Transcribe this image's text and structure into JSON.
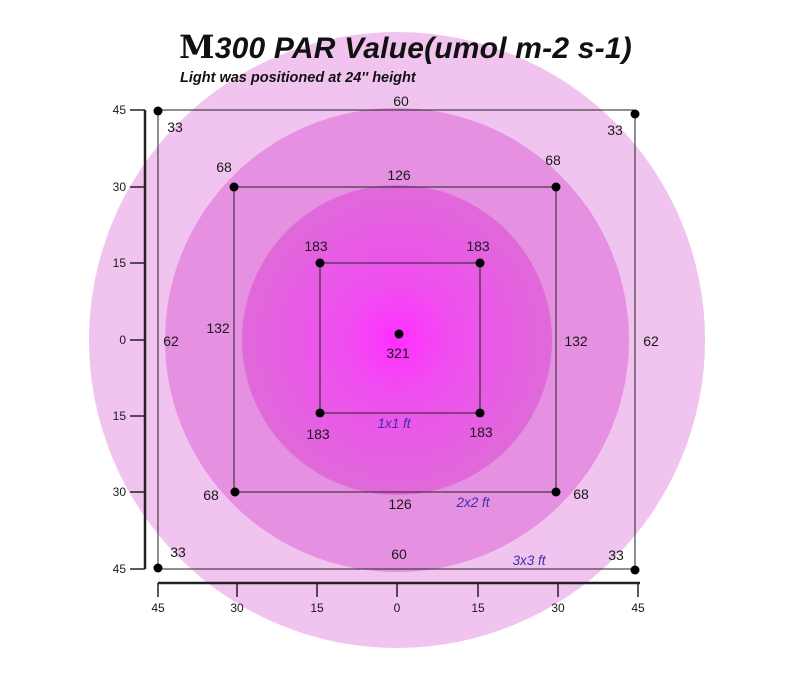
{
  "title": {
    "logo_letter": "M",
    "text": "300 PAR Value(umol m-2 s-1)"
  },
  "subtitle": "Light was positioned at 24'' height",
  "colors": {
    "ring_outer": "#f1c3ef",
    "ring_middle": "#e690e2",
    "ring_inner": "#df6ad9",
    "center_glow": "#ff2eff",
    "grid_line": "#222222",
    "dot": "#000000",
    "zone_label": "#3b2fb0",
    "text": "#1a1a1a"
  },
  "axes": {
    "y_ticks": [
      "45",
      "30",
      "15",
      "0",
      "15",
      "30",
      "45"
    ],
    "x_ticks": [
      "45",
      "30",
      "15",
      "0",
      "15",
      "30",
      "45"
    ]
  },
  "center": {
    "value": "321"
  },
  "zones": [
    {
      "label": "1x1 ft",
      "corners": {
        "tl": "183",
        "tr": "183",
        "bl": "183",
        "br": "183"
      },
      "edges": {
        "top": "",
        "bottom": "",
        "left": "",
        "right": ""
      }
    },
    {
      "label": "2x2 ft",
      "corners": {
        "tl": "68",
        "tr": "68",
        "bl": "68",
        "br": "68"
      },
      "edges": {
        "top": "126",
        "bottom": "126",
        "left": "132",
        "right": "132"
      }
    },
    {
      "label": "3x3 ft",
      "corners": {
        "tl": "33",
        "tr": "33",
        "bl": "33",
        "br": "33"
      },
      "edges": {
        "top": "60",
        "bottom": "60",
        "left": "62",
        "right": "62"
      }
    }
  ]
}
